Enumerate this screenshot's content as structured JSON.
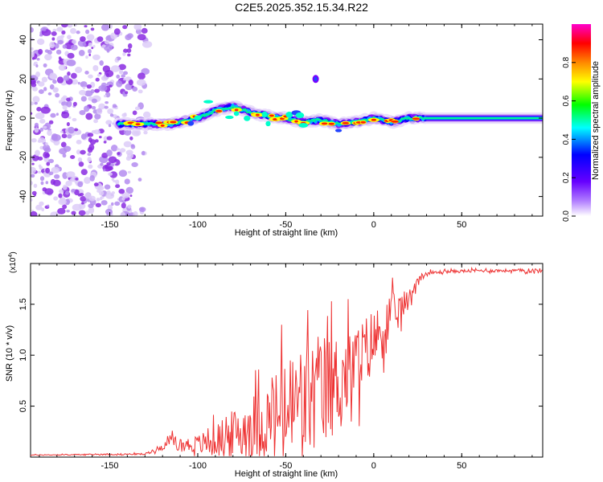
{
  "figure_title": "C2E5.2025.352.15.34.R22",
  "chart_data": [
    {
      "type": "heatmap",
      "name": "spectrogram",
      "title": "",
      "xlabel": "Height of straight line (km)",
      "ylabel": "Frequency (Hz)",
      "xlim": [
        -195,
        96
      ],
      "ylim": [
        -50,
        48
      ],
      "xticks": [
        -150,
        -100,
        -50,
        0,
        50
      ],
      "xtick_labels": [
        "-150",
        "-100",
        "-50",
        "0",
        "50"
      ],
      "yticks": [
        -40,
        -20,
        0,
        20,
        40
      ],
      "ytick_labels": [
        "-40",
        "-20",
        "0",
        "20",
        "40"
      ],
      "noise_region_x": [
        -195,
        -128
      ],
      "signal_band": [
        {
          "x": -145,
          "f": -3
        },
        {
          "x": -130,
          "f": -3
        },
        {
          "x": -115,
          "f": -3
        },
        {
          "x": -100,
          "f": 0
        },
        {
          "x": -90,
          "f": 4
        },
        {
          "x": -80,
          "f": 6
        },
        {
          "x": -70,
          "f": 3
        },
        {
          "x": -60,
          "f": 1
        },
        {
          "x": -50,
          "f": 0
        },
        {
          "x": -40,
          "f": -2
        },
        {
          "x": -30,
          "f": -1
        },
        {
          "x": -20,
          "f": -3
        },
        {
          "x": -10,
          "f": -2
        },
        {
          "x": 0,
          "f": 0
        },
        {
          "x": 10,
          "f": -2
        },
        {
          "x": 20,
          "f": 0
        },
        {
          "x": 40,
          "f": 0
        },
        {
          "x": 60,
          "f": 0
        },
        {
          "x": 80,
          "f": 0
        },
        {
          "x": 96,
          "f": 0
        }
      ],
      "isolated_blob": {
        "x": -33,
        "f": 20
      },
      "colorbar": {
        "label": "Normalized spectral amplitude",
        "range": [
          0,
          1
        ],
        "ticks": [
          0.0,
          0.2,
          0.4,
          0.6,
          0.8
        ],
        "tick_labels": [
          "0.0",
          "0.2",
          "0.4",
          "0.6",
          "0.8"
        ],
        "colors": [
          "#ffffff",
          "#8800ff",
          "#0000ff",
          "#00ffff",
          "#00ff00",
          "#ffff00",
          "#ff8800",
          "#ff0000",
          "#ff00ff"
        ]
      }
    },
    {
      "type": "line",
      "name": "snr",
      "title": "",
      "xlabel": "Height of straight line (km)",
      "ylabel": "SNR (10 * v/v)",
      "y_multiplier": "(x10",
      "y_multiplier_exp": "4",
      "y_multiplier_close": ")",
      "xlim": [
        -195,
        96
      ],
      "ylim": [
        0,
        1.9
      ],
      "xticks": [
        -150,
        -100,
        -50,
        0,
        50
      ],
      "xtick_labels": [
        "-150",
        "-100",
        "-50",
        "0",
        "50"
      ],
      "yticks": [
        0.5,
        1.0,
        1.5
      ],
      "ytick_labels": [
        "0.5",
        "1.0",
        "1.5"
      ],
      "color": "#ee3333",
      "series": [
        {
          "name": "SNR",
          "x": [
            -195,
            -130,
            -120,
            -115,
            -110,
            -100,
            -90,
            -80,
            -70,
            -60,
            -50,
            -40,
            -30,
            -20,
            -10,
            0,
            10,
            20,
            25,
            30,
            40,
            60,
            80,
            96
          ],
          "y_base": [
            0.02,
            0.03,
            0.1,
            0.18,
            0.12,
            0.12,
            0.16,
            0.22,
            0.3,
            0.35,
            0.45,
            0.55,
            0.62,
            0.75,
            0.9,
            1.15,
            1.35,
            1.55,
            1.75,
            1.8,
            1.82,
            1.83,
            1.83,
            1.83
          ],
          "y_noise": [
            0.005,
            0.01,
            0.04,
            0.06,
            0.08,
            0.12,
            0.2,
            0.3,
            0.4,
            0.5,
            0.7,
            0.75,
            0.75,
            0.6,
            0.5,
            0.4,
            0.3,
            0.12,
            0.05,
            0.03,
            0.02,
            0.02,
            0.02,
            0.03
          ]
        }
      ]
    }
  ]
}
